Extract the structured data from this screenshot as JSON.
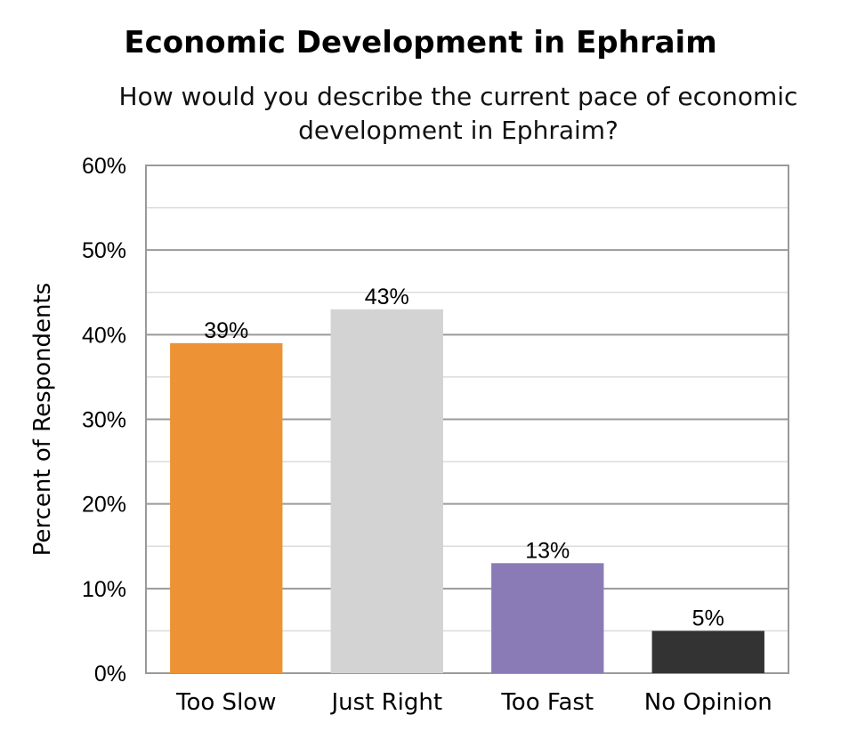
{
  "chart_data": {
    "type": "bar",
    "title": "Economic Development in Ephraim",
    "subtitle": "How would you describe the current pace of economic development in Ephraim?",
    "ylabel": "Percent of Respondents",
    "xlabel": "",
    "categories": [
      "Too Slow",
      "Just Right",
      "Too Fast",
      "No Opinion"
    ],
    "values": [
      39,
      43,
      13,
      5
    ],
    "data_labels": [
      "39%",
      "43%",
      "13%",
      "5%"
    ],
    "ylim": [
      0,
      60
    ],
    "y_ticks": [
      0,
      10,
      20,
      30,
      40,
      50,
      60
    ],
    "y_tick_labels": [
      "0%",
      "10%",
      "20%",
      "30%",
      "40%",
      "50%",
      "60%"
    ],
    "grid": true,
    "legend": "none",
    "colors": [
      "#ED9235",
      "#D3D3D3",
      "#8A7BB7",
      "#333333"
    ]
  }
}
